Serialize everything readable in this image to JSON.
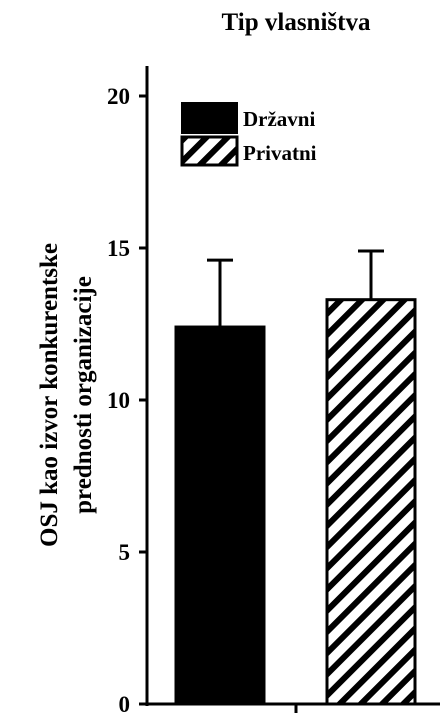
{
  "chart_data": {
    "type": "bar",
    "title": "Tip vlasništva",
    "ylabel_line1": "OSJ kao izvor konkurentske",
    "ylabel_line2": "prednosti organizacije",
    "xlabel": "",
    "ylim": [
      0,
      20
    ],
    "yticks": [
      0,
      5,
      10,
      15,
      20
    ],
    "series": [
      {
        "name": "Državni",
        "value": 12.4,
        "error": 2.2,
        "fill": "solid",
        "color": "#000000"
      },
      {
        "name": "Privatni",
        "value": 13.3,
        "error": 1.6,
        "fill": "hatch",
        "color": "#000000"
      }
    ],
    "legend_placement": "top-left",
    "grid": false
  }
}
